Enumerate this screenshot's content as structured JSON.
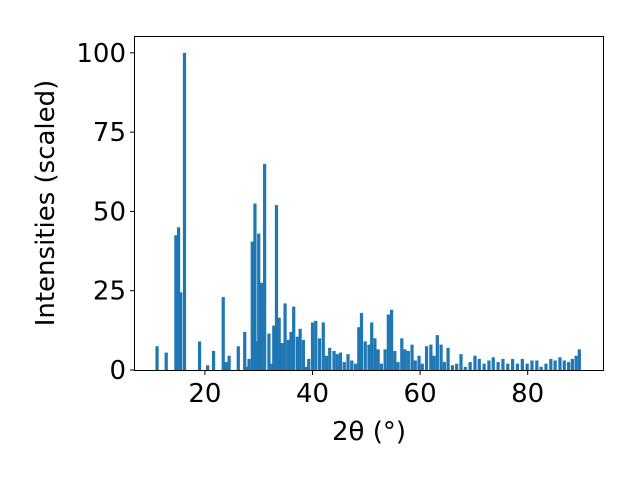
{
  "chart_data": {
    "type": "bar",
    "title": "",
    "xlabel": "2θ (°)",
    "ylabel": "Intensities (scaled)",
    "xlim": [
      7,
      94
    ],
    "ylim": [
      0,
      105
    ],
    "xticks": [
      20,
      40,
      60,
      80
    ],
    "yticks": [
      0,
      25,
      50,
      75,
      100
    ],
    "xtick_labels": [
      "20",
      "40",
      "60",
      "80"
    ],
    "ytick_labels": [
      "0",
      "25",
      "50",
      "75",
      "100"
    ],
    "grid": false,
    "bar_color": "#1f77b4",
    "bar_width": 0.6,
    "x": [
      11.1,
      12.8,
      14.6,
      15.1,
      15.5,
      16.2,
      19.0,
      20.5,
      21.6,
      23.4,
      23.9,
      24.5,
      26.2,
      27.4,
      27.8,
      28.2,
      28.8,
      29.3,
      29.7,
      30.0,
      30.5,
      31.1,
      31.9,
      32.5,
      32.8,
      33.3,
      33.8,
      34.3,
      34.9,
      35.5,
      36.0,
      36.5,
      37.2,
      37.7,
      38.3,
      38.8,
      39.3,
      40.0,
      40.6,
      41.3,
      42.0,
      42.6,
      43.2,
      44.0,
      44.6,
      45.2,
      45.9,
      46.6,
      47.3,
      48.0,
      48.6,
      49.1,
      49.8,
      50.5,
      51.0,
      51.6,
      52.2,
      52.8,
      53.5,
      54.1,
      54.7,
      55.3,
      55.9,
      56.6,
      57.2,
      57.8,
      58.5,
      59.1,
      59.8,
      60.4,
      61.2,
      62.0,
      62.6,
      63.2,
      63.9,
      64.5,
      65.2,
      66.0,
      66.8,
      67.6,
      68.4,
      69.3,
      70.2,
      71.0,
      71.9,
      72.8,
      73.6,
      74.5,
      75.4,
      76.3,
      77.2,
      78.1,
      79.0,
      79.9,
      80.8,
      81.7,
      82.5,
      83.4,
      84.3,
      85.1,
      86.0,
      86.8,
      87.6,
      88.3,
      89.0,
      89.6
    ],
    "values": [
      7.5,
      5.5,
      42.5,
      45,
      24.5,
      100,
      9,
      1.5,
      6,
      23,
      2.5,
      4.5,
      7.5,
      12,
      1,
      3.5,
      40.5,
      52.5,
      9,
      43,
      27.5,
      65,
      11.5,
      2,
      14,
      52,
      16.5,
      8.5,
      21,
      9.5,
      12,
      20,
      10.5,
      13,
      9.5,
      1,
      3.5,
      15,
      15.5,
      10,
      15,
      4.5,
      7,
      6,
      5,
      5.5,
      2.5,
      5,
      3,
      2,
      13.5,
      18,
      9,
      8,
      15,
      10,
      6.5,
      2,
      6.5,
      17.5,
      19,
      6,
      2.5,
      10,
      6.5,
      6,
      8,
      3,
      4.5,
      2,
      7.5,
      8,
      4.5,
      11,
      8,
      2.5,
      7,
      1.5,
      2,
      5,
      1,
      2.5,
      4.5,
      3.5,
      2,
      3,
      4,
      2.5,
      3.5,
      2,
      3.5,
      2,
      3.5,
      2,
      3,
      3,
      1,
      2,
      3.5,
      3,
      4,
      3,
      2.5,
      3.5,
      4.5,
      6.5
    ]
  }
}
